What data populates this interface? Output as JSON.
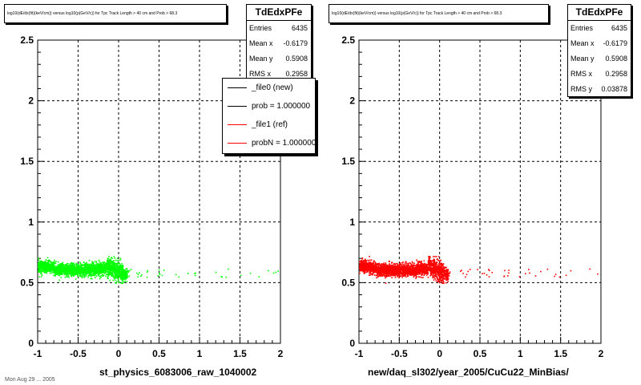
{
  "panels": [
    {
      "title_text": "log10(dE/dx(fit)(keV/cm)) versus log10(p(GeV/c)) for Tpc Track Length > 40 cm and Prob > 68.3",
      "stats": {
        "name": "TdEdxPFe",
        "rows": [
          {
            "label": "Entries",
            "value": "6435"
          },
          {
            "label": "Mean x",
            "value": "-0.6179"
          },
          {
            "label": "Mean y",
            "value": "0.5908"
          },
          {
            "label": "RMS x",
            "value": "0.2958"
          }
        ]
      },
      "legend": [
        {
          "label": "_file0 (new)",
          "color": "#000000"
        },
        {
          "label": "prob = 1.000000",
          "color": "#000000"
        },
        {
          "label": "_file1 (ref)",
          "color": "#ff0000"
        },
        {
          "label": "probN = 1.000000",
          "color": "#ff0000"
        }
      ],
      "xtitle": "st_physics_6083006_raw_1040002"
    },
    {
      "title_text": "log10(dE/dx(fit)(keV/cm)) versus log10(p(GeV/c)) for Tpc Track Length > 40 cm and Prob > 68.3",
      "stats": {
        "name": "TdEdxPFe",
        "rows": [
          {
            "label": "Entries",
            "value": "6435"
          },
          {
            "label": "Mean x",
            "value": "-0.6179"
          },
          {
            "label": "Mean y",
            "value": "0.5908"
          },
          {
            "label": "RMS x",
            "value": "0.2958"
          },
          {
            "label": "RMS y",
            "value": "0.03878"
          }
        ]
      },
      "xtitle": "new/daq_sl302/year_2005/CuCu22_MinBias/"
    }
  ],
  "footer_text": "Mon Aug 29 ... 2005",
  "chart_data": [
    {
      "type": "scatter",
      "name": "TdEdxPFe",
      "xlim": [
        -1,
        2
      ],
      "ylim": [
        0,
        2.5
      ],
      "x_ticks": [
        "-1",
        "-0.5",
        "0",
        "0.5",
        "1",
        "1.5",
        "2"
      ],
      "y_ticks": [
        "0",
        "0.5",
        "1",
        "1.5",
        "2",
        "2.5"
      ],
      "grid": true,
      "marker_color": "#00ff00",
      "entries": 6435,
      "mean_x": -0.6179,
      "mean_y": 0.5908,
      "rms_x": 0.2958,
      "dense_band": {
        "x_range": [
          -1.0,
          0.1
        ],
        "y_range": [
          0.5,
          0.72
        ]
      },
      "sparse_tail": {
        "x_range": [
          0.1,
          2.0
        ],
        "y_range": [
          0.55,
          0.62
        ]
      }
    },
    {
      "type": "scatter",
      "name": "TdEdxPFe",
      "xlim": [
        -1,
        2
      ],
      "ylim": [
        0,
        2.5
      ],
      "x_ticks": [
        "-1",
        "-0.5",
        "0",
        "0.5",
        "1",
        "1.5",
        "2"
      ],
      "y_ticks": [
        "0",
        "0.5",
        "1",
        "1.5",
        "2",
        "2.5"
      ],
      "grid": true,
      "marker_color": "#ff0000",
      "entries": 6435,
      "mean_x": -0.6179,
      "mean_y": 0.5908,
      "rms_x": 0.2958,
      "rms_y": 0.03878,
      "dense_band": {
        "x_range": [
          -1.0,
          0.1
        ],
        "y_range": [
          0.5,
          0.72
        ]
      },
      "sparse_tail": {
        "x_range": [
          0.1,
          2.0
        ],
        "y_range": [
          0.55,
          0.62
        ]
      }
    }
  ]
}
